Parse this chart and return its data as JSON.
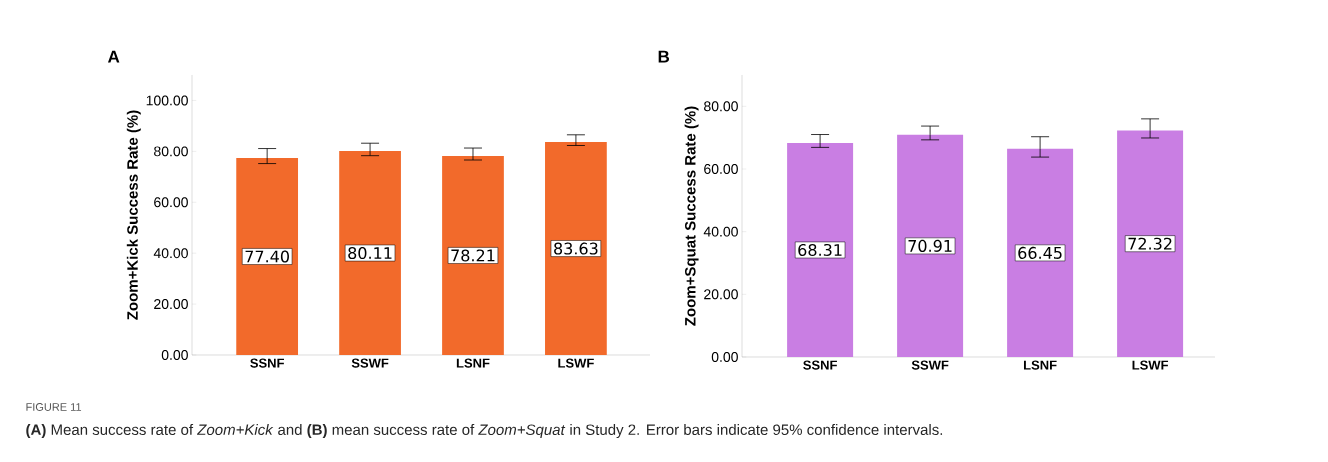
{
  "chart_data": [
    {
      "type": "bar",
      "title": "A",
      "ylabel": "Zoom+Kick Success Rate (%)",
      "categories": [
        "SSNF",
        "SSWF",
        "LSNF",
        "LSWF"
      ],
      "values": [
        77.4,
        80.11,
        78.21,
        83.63
      ],
      "value_labels": [
        "77.40",
        "80.11",
        "78.21",
        "83.63"
      ],
      "color": "#f26a2b",
      "errors": [
        [
          75.2,
          81.1
        ],
        [
          78.3,
          83.2
        ],
        [
          76.6,
          81.3
        ],
        [
          82.3,
          86.5
        ]
      ],
      "ylim": [
        0,
        110
      ],
      "yticks": [
        {
          "value": 0,
          "label": "0.00"
        },
        {
          "value": 20,
          "label": "20.00"
        },
        {
          "value": 40,
          "label": "40.00"
        },
        {
          "value": 60,
          "label": "60.00"
        },
        {
          "value": 80,
          "label": "80.00"
        },
        {
          "value": 100,
          "label": "100.00"
        }
      ],
      "annotations": [
        "FIGURE 11",
        "**(A)** Mean success rate of *Zoom+Kick* and **(B)** mean success rate of *Zoom+Squat* in Study 2. Error bars indicate 95% confidence intervals."
      ]
    },
    {
      "type": "bar",
      "title": "B",
      "ylabel": "Zoom+Squat Success Rate (%)",
      "categories": [
        "SSNF",
        "SSWF",
        "LSNF",
        "LSWF"
      ],
      "values": [
        68.31,
        70.91,
        66.45,
        72.32
      ],
      "value_labels": [
        "68.31",
        "70.91",
        "66.45",
        "72.32"
      ],
      "color": "#c97ee3",
      "errors": [
        [
          66.9,
          71.0
        ],
        [
          69.3,
          73.7
        ],
        [
          63.8,
          70.3
        ],
        [
          69.9,
          76.0
        ]
      ],
      "ylim": [
        0,
        90
      ],
      "yticks": [
        {
          "value": 0,
          "label": "0.00"
        },
        {
          "value": 20,
          "label": "20.00"
        },
        {
          "value": 40,
          "label": "40.00"
        },
        {
          "value": 60,
          "label": "60.00"
        },
        {
          "value": 80,
          "label": "80.00"
        }
      ]
    }
  ]
}
